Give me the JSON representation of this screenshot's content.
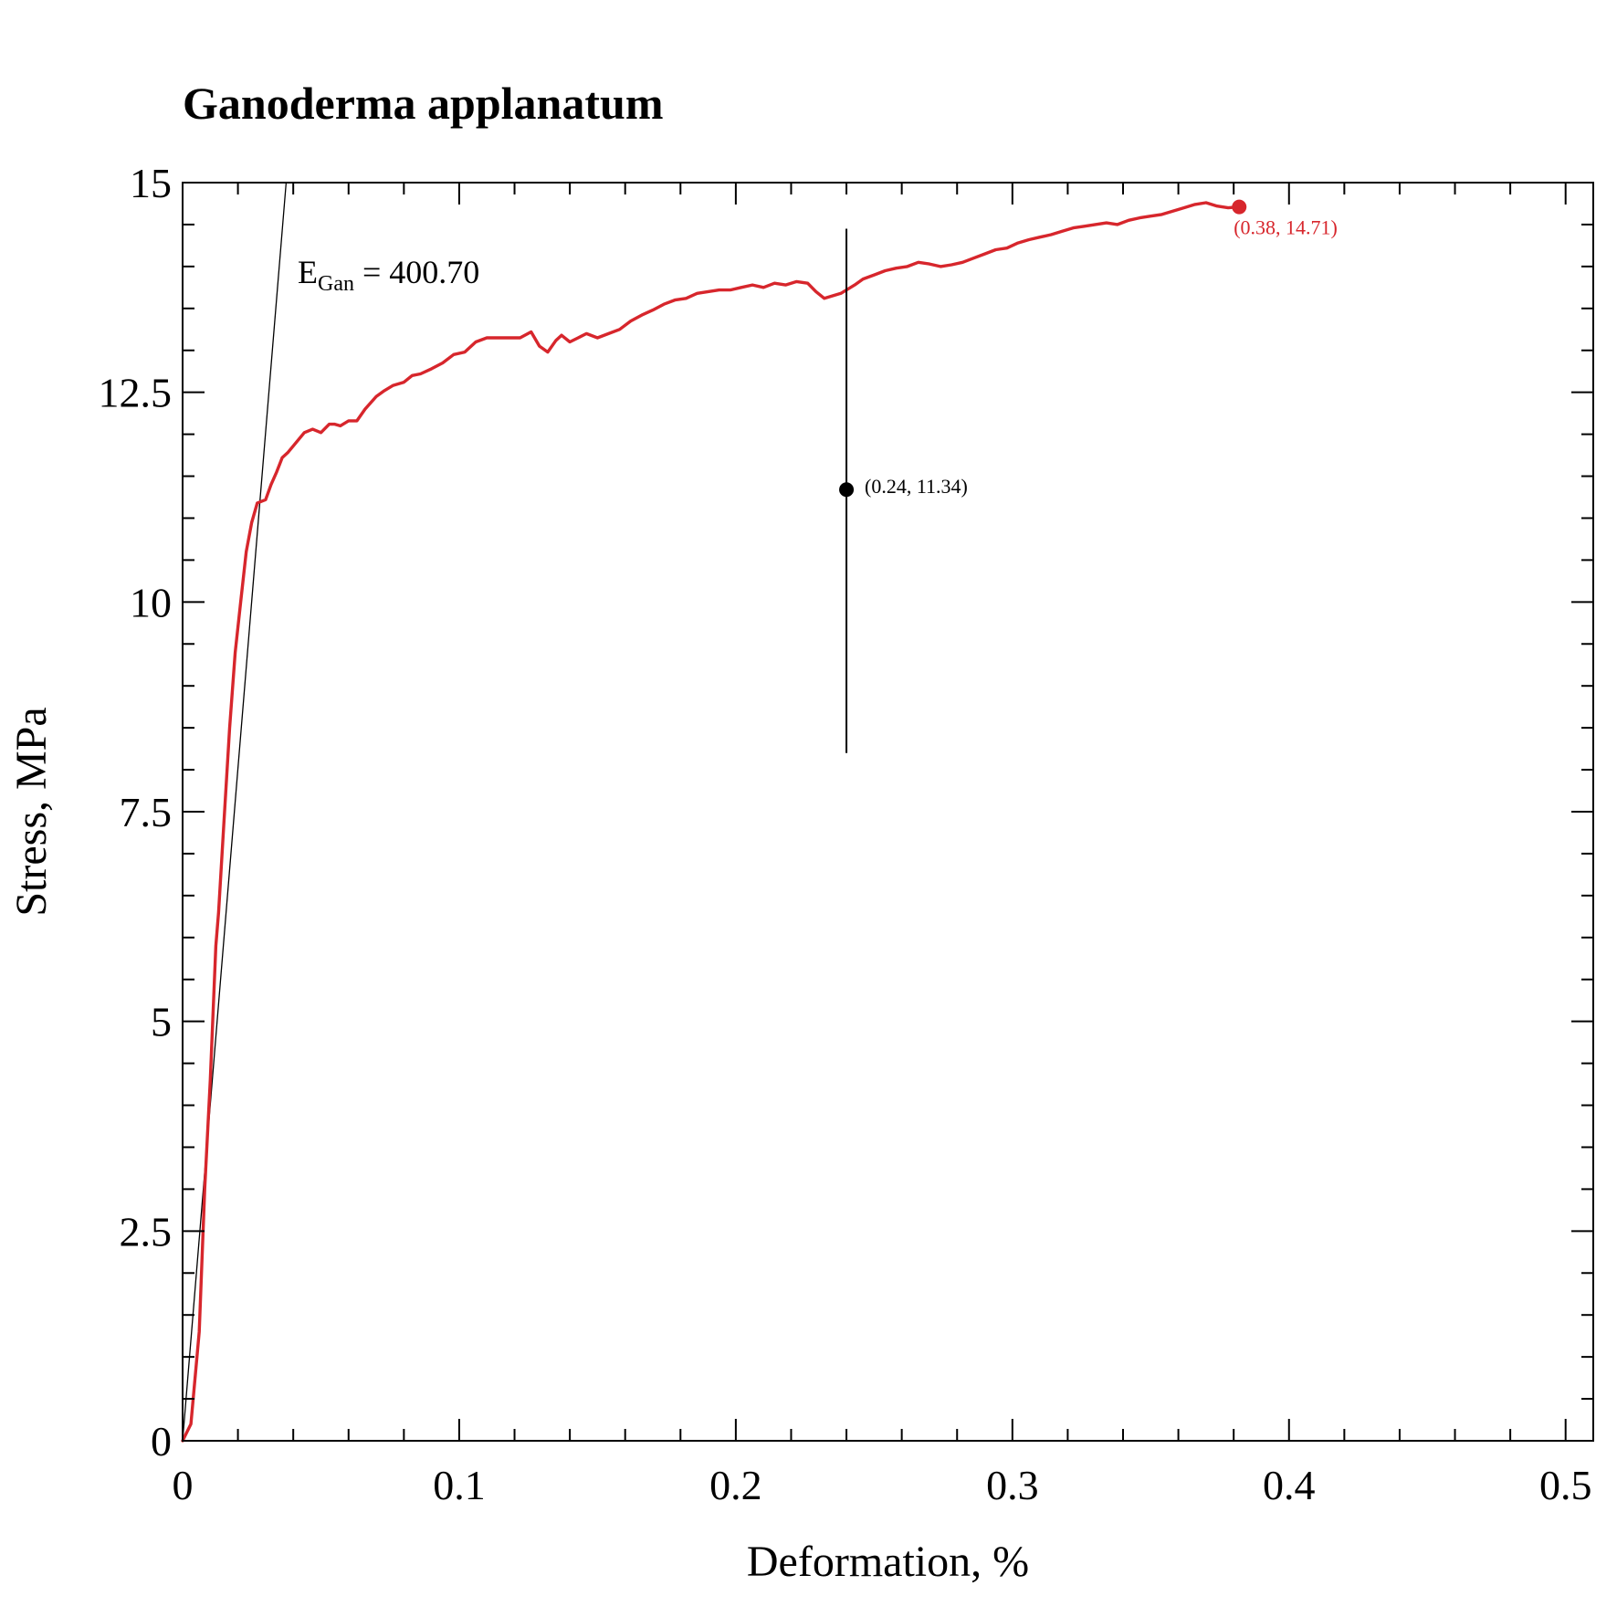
{
  "chart_data": {
    "type": "line",
    "title": "Ganoderma applanatum",
    "xlabel": "Deformation, %",
    "ylabel": "Stress, MPa",
    "xlim": [
      0,
      0.51
    ],
    "ylim": [
      0,
      15
    ],
    "x_ticks": [
      0,
      0.1,
      0.2,
      0.3,
      0.4,
      0.5
    ],
    "x_tick_labels": [
      "0",
      "0.1",
      "0.2",
      "0.3",
      "0.4",
      "0.5"
    ],
    "y_ticks": [
      0,
      2.5,
      5,
      7.5,
      10,
      12.5,
      15
    ],
    "y_tick_labels": [
      "0",
      "2.5",
      "5",
      "7.5",
      "10",
      "12.5",
      "15"
    ],
    "grid": false,
    "colors": {
      "curve": "#d7262c",
      "fit_line": "#000000",
      "marker": "#000000",
      "axes": "#000000"
    },
    "series": [
      {
        "x": [
          0,
          0.003,
          0.006,
          0.008,
          0.01,
          0.012,
          0.013,
          0.015,
          0.017,
          0.019,
          0.021,
          0.023,
          0.025,
          0.027,
          0.03,
          0.032,
          0.034,
          0.036,
          0.038,
          0.041,
          0.044,
          0.047,
          0.05,
          0.053,
          0.055,
          0.057,
          0.06,
          0.063,
          0.066,
          0.07,
          0.073,
          0.076,
          0.08,
          0.083,
          0.086,
          0.09,
          0.094,
          0.098,
          0.102,
          0.106,
          0.11,
          0.114,
          0.118,
          0.122,
          0.126,
          0.129,
          0.132,
          0.135,
          0.137,
          0.14,
          0.143,
          0.146,
          0.15,
          0.154,
          0.158,
          0.162,
          0.166,
          0.17,
          0.174,
          0.178,
          0.182,
          0.186,
          0.19,
          0.194,
          0.198,
          0.202,
          0.206,
          0.21,
          0.214,
          0.218,
          0.222,
          0.226,
          0.229,
          0.232,
          0.235,
          0.238,
          0.24,
          0.243,
          0.246,
          0.25,
          0.254,
          0.258,
          0.262,
          0.266,
          0.27,
          0.274,
          0.278,
          0.282,
          0.286,
          0.29,
          0.294,
          0.298,
          0.302,
          0.306,
          0.31,
          0.314,
          0.318,
          0.322,
          0.326,
          0.33,
          0.334,
          0.338,
          0.342,
          0.346,
          0.35,
          0.354,
          0.358,
          0.362,
          0.366,
          0.37,
          0.374,
          0.378,
          0.382
        ],
        "y": [
          0,
          0.2,
          1.3,
          3.0,
          4.3,
          5.9,
          6.3,
          7.4,
          8.5,
          9.4,
          10.0,
          10.6,
          10.95,
          11.18,
          11.22,
          11.4,
          11.55,
          11.72,
          11.78,
          11.9,
          12.02,
          12.06,
          12.02,
          12.12,
          12.12,
          12.1,
          12.16,
          12.16,
          12.3,
          12.45,
          12.52,
          12.58,
          12.62,
          12.7,
          12.72,
          12.78,
          12.85,
          12.95,
          12.98,
          13.1,
          13.15,
          13.15,
          13.15,
          13.15,
          13.22,
          13.05,
          12.98,
          13.12,
          13.18,
          13.1,
          13.15,
          13.2,
          13.15,
          13.2,
          13.25,
          13.35,
          13.42,
          13.48,
          13.55,
          13.6,
          13.62,
          13.68,
          13.7,
          13.72,
          13.72,
          13.75,
          13.78,
          13.75,
          13.8,
          13.78,
          13.82,
          13.8,
          13.7,
          13.62,
          13.65,
          13.68,
          13.72,
          13.78,
          13.85,
          13.9,
          13.95,
          13.98,
          14.0,
          14.05,
          14.03,
          14.0,
          14.02,
          14.05,
          14.1,
          14.15,
          14.2,
          14.22,
          14.28,
          14.32,
          14.35,
          14.38,
          14.42,
          14.46,
          14.48,
          14.5,
          14.52,
          14.5,
          14.55,
          14.58,
          14.6,
          14.62,
          14.66,
          14.7,
          14.74,
          14.76,
          14.72,
          14.7,
          14.71
        ]
      }
    ],
    "fit_line": {
      "slope": 400.7,
      "label_main": "E",
      "label_sub": "Gan",
      "label_rest": " = 400.70"
    },
    "annotations": [
      {
        "x": 0.24,
        "y": 11.34,
        "label": "(0.24, 11.34)",
        "error_low": 8.2,
        "error_high": 14.45
      },
      {
        "x": 0.382,
        "y": 14.71,
        "label": "(0.38, 14.71)"
      }
    ]
  }
}
